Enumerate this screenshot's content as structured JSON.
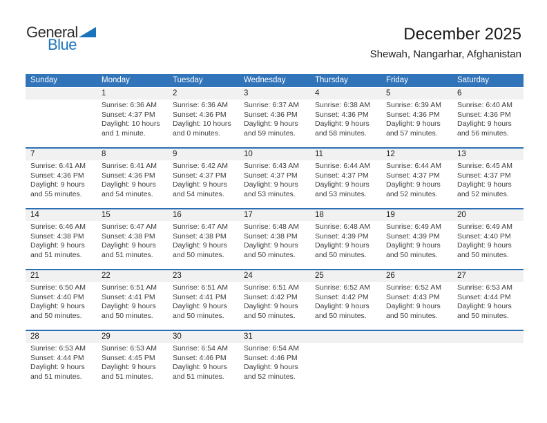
{
  "logo": {
    "general": "General",
    "blue": "Blue"
  },
  "header": {
    "title": "December 2025",
    "location": "Shewah, Nangarhar, Afghanistan"
  },
  "colors": {
    "header_bg": "#3274b9",
    "week_border": "#2a6eb3",
    "number_band_bg": "#f1f1f1",
    "logo_blue": "#1b75bc",
    "weekday_text": "#ffffff"
  },
  "weekdays": [
    "Sunday",
    "Monday",
    "Tuesday",
    "Wednesday",
    "Thursday",
    "Friday",
    "Saturday"
  ],
  "weeks": [
    [
      {
        "day": "",
        "sunrise": "",
        "sunset": "",
        "daylight1": "",
        "daylight2": ""
      },
      {
        "day": "1",
        "sunrise": "Sunrise: 6:36 AM",
        "sunset": "Sunset: 4:37 PM",
        "daylight1": "Daylight: 10 hours",
        "daylight2": "and 1 minute."
      },
      {
        "day": "2",
        "sunrise": "Sunrise: 6:36 AM",
        "sunset": "Sunset: 4:36 PM",
        "daylight1": "Daylight: 10 hours",
        "daylight2": "and 0 minutes."
      },
      {
        "day": "3",
        "sunrise": "Sunrise: 6:37 AM",
        "sunset": "Sunset: 4:36 PM",
        "daylight1": "Daylight: 9 hours",
        "daylight2": "and 59 minutes."
      },
      {
        "day": "4",
        "sunrise": "Sunrise: 6:38 AM",
        "sunset": "Sunset: 4:36 PM",
        "daylight1": "Daylight: 9 hours",
        "daylight2": "and 58 minutes."
      },
      {
        "day": "5",
        "sunrise": "Sunrise: 6:39 AM",
        "sunset": "Sunset: 4:36 PM",
        "daylight1": "Daylight: 9 hours",
        "daylight2": "and 57 minutes."
      },
      {
        "day": "6",
        "sunrise": "Sunrise: 6:40 AM",
        "sunset": "Sunset: 4:36 PM",
        "daylight1": "Daylight: 9 hours",
        "daylight2": "and 56 minutes."
      }
    ],
    [
      {
        "day": "7",
        "sunrise": "Sunrise: 6:41 AM",
        "sunset": "Sunset: 4:36 PM",
        "daylight1": "Daylight: 9 hours",
        "daylight2": "and 55 minutes."
      },
      {
        "day": "8",
        "sunrise": "Sunrise: 6:41 AM",
        "sunset": "Sunset: 4:36 PM",
        "daylight1": "Daylight: 9 hours",
        "daylight2": "and 54 minutes."
      },
      {
        "day": "9",
        "sunrise": "Sunrise: 6:42 AM",
        "sunset": "Sunset: 4:37 PM",
        "daylight1": "Daylight: 9 hours",
        "daylight2": "and 54 minutes."
      },
      {
        "day": "10",
        "sunrise": "Sunrise: 6:43 AM",
        "sunset": "Sunset: 4:37 PM",
        "daylight1": "Daylight: 9 hours",
        "daylight2": "and 53 minutes."
      },
      {
        "day": "11",
        "sunrise": "Sunrise: 6:44 AM",
        "sunset": "Sunset: 4:37 PM",
        "daylight1": "Daylight: 9 hours",
        "daylight2": "and 53 minutes."
      },
      {
        "day": "12",
        "sunrise": "Sunrise: 6:44 AM",
        "sunset": "Sunset: 4:37 PM",
        "daylight1": "Daylight: 9 hours",
        "daylight2": "and 52 minutes."
      },
      {
        "day": "13",
        "sunrise": "Sunrise: 6:45 AM",
        "sunset": "Sunset: 4:37 PM",
        "daylight1": "Daylight: 9 hours",
        "daylight2": "and 52 minutes."
      }
    ],
    [
      {
        "day": "14",
        "sunrise": "Sunrise: 6:46 AM",
        "sunset": "Sunset: 4:38 PM",
        "daylight1": "Daylight: 9 hours",
        "daylight2": "and 51 minutes."
      },
      {
        "day": "15",
        "sunrise": "Sunrise: 6:47 AM",
        "sunset": "Sunset: 4:38 PM",
        "daylight1": "Daylight: 9 hours",
        "daylight2": "and 51 minutes."
      },
      {
        "day": "16",
        "sunrise": "Sunrise: 6:47 AM",
        "sunset": "Sunset: 4:38 PM",
        "daylight1": "Daylight: 9 hours",
        "daylight2": "and 50 minutes."
      },
      {
        "day": "17",
        "sunrise": "Sunrise: 6:48 AM",
        "sunset": "Sunset: 4:38 PM",
        "daylight1": "Daylight: 9 hours",
        "daylight2": "and 50 minutes."
      },
      {
        "day": "18",
        "sunrise": "Sunrise: 6:48 AM",
        "sunset": "Sunset: 4:39 PM",
        "daylight1": "Daylight: 9 hours",
        "daylight2": "and 50 minutes."
      },
      {
        "day": "19",
        "sunrise": "Sunrise: 6:49 AM",
        "sunset": "Sunset: 4:39 PM",
        "daylight1": "Daylight: 9 hours",
        "daylight2": "and 50 minutes."
      },
      {
        "day": "20",
        "sunrise": "Sunrise: 6:49 AM",
        "sunset": "Sunset: 4:40 PM",
        "daylight1": "Daylight: 9 hours",
        "daylight2": "and 50 minutes."
      }
    ],
    [
      {
        "day": "21",
        "sunrise": "Sunrise: 6:50 AM",
        "sunset": "Sunset: 4:40 PM",
        "daylight1": "Daylight: 9 hours",
        "daylight2": "and 50 minutes."
      },
      {
        "day": "22",
        "sunrise": "Sunrise: 6:51 AM",
        "sunset": "Sunset: 4:41 PM",
        "daylight1": "Daylight: 9 hours",
        "daylight2": "and 50 minutes."
      },
      {
        "day": "23",
        "sunrise": "Sunrise: 6:51 AM",
        "sunset": "Sunset: 4:41 PM",
        "daylight1": "Daylight: 9 hours",
        "daylight2": "and 50 minutes."
      },
      {
        "day": "24",
        "sunrise": "Sunrise: 6:51 AM",
        "sunset": "Sunset: 4:42 PM",
        "daylight1": "Daylight: 9 hours",
        "daylight2": "and 50 minutes."
      },
      {
        "day": "25",
        "sunrise": "Sunrise: 6:52 AM",
        "sunset": "Sunset: 4:42 PM",
        "daylight1": "Daylight: 9 hours",
        "daylight2": "and 50 minutes."
      },
      {
        "day": "26",
        "sunrise": "Sunrise: 6:52 AM",
        "sunset": "Sunset: 4:43 PM",
        "daylight1": "Daylight: 9 hours",
        "daylight2": "and 50 minutes."
      },
      {
        "day": "27",
        "sunrise": "Sunrise: 6:53 AM",
        "sunset": "Sunset: 4:44 PM",
        "daylight1": "Daylight: 9 hours",
        "daylight2": "and 50 minutes."
      }
    ],
    [
      {
        "day": "28",
        "sunrise": "Sunrise: 6:53 AM",
        "sunset": "Sunset: 4:44 PM",
        "daylight1": "Daylight: 9 hours",
        "daylight2": "and 51 minutes."
      },
      {
        "day": "29",
        "sunrise": "Sunrise: 6:53 AM",
        "sunset": "Sunset: 4:45 PM",
        "daylight1": "Daylight: 9 hours",
        "daylight2": "and 51 minutes."
      },
      {
        "day": "30",
        "sunrise": "Sunrise: 6:54 AM",
        "sunset": "Sunset: 4:46 PM",
        "daylight1": "Daylight: 9 hours",
        "daylight2": "and 51 minutes."
      },
      {
        "day": "31",
        "sunrise": "Sunrise: 6:54 AM",
        "sunset": "Sunset: 4:46 PM",
        "daylight1": "Daylight: 9 hours",
        "daylight2": "and 52 minutes."
      },
      {
        "day": "",
        "sunrise": "",
        "sunset": "",
        "daylight1": "",
        "daylight2": ""
      },
      {
        "day": "",
        "sunrise": "",
        "sunset": "",
        "daylight1": "",
        "daylight2": ""
      },
      {
        "day": "",
        "sunrise": "",
        "sunset": "",
        "daylight1": "",
        "daylight2": ""
      }
    ]
  ]
}
